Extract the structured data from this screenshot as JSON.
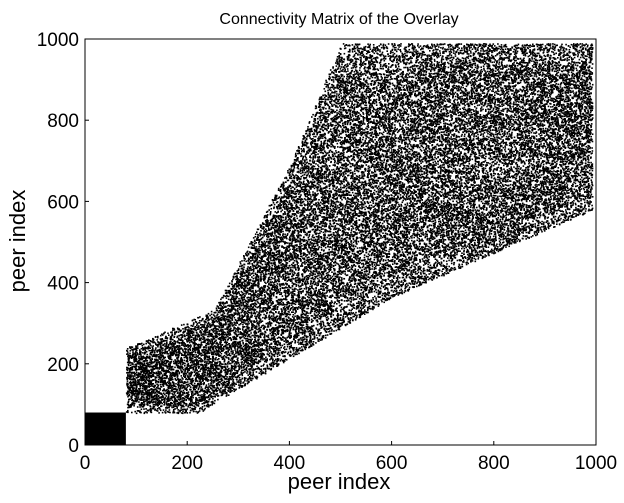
{
  "chart_data": {
    "type": "scatter",
    "title": "Connectivity Matrix of the Overlay",
    "xlabel": "peer index",
    "ylabel": "peer index",
    "xlim": [
      0,
      1000
    ],
    "ylim": [
      0,
      1000
    ],
    "xticks": [
      "0",
      "200",
      "400",
      "600",
      "800",
      "1000"
    ],
    "yticks": [
      "0",
      "200",
      "400",
      "600",
      "800",
      "1000"
    ],
    "marker_color": "#000000",
    "grid": false,
    "regions": [
      {
        "x_from": 0,
        "x_to": 80,
        "y_from": 0,
        "y_to": 80,
        "density": "full"
      },
      {
        "x_from": 80,
        "x_to": 250,
        "y_from": 80,
        "y_to": 240,
        "density": "very dense"
      },
      {
        "x_from": 200,
        "x_to": 600,
        "y_from": 200,
        "y_to": 700,
        "density": "dense"
      },
      {
        "x_from": 400,
        "x_to": 990,
        "y_from": 400,
        "y_to": 990,
        "density": "dense"
      }
    ]
  }
}
